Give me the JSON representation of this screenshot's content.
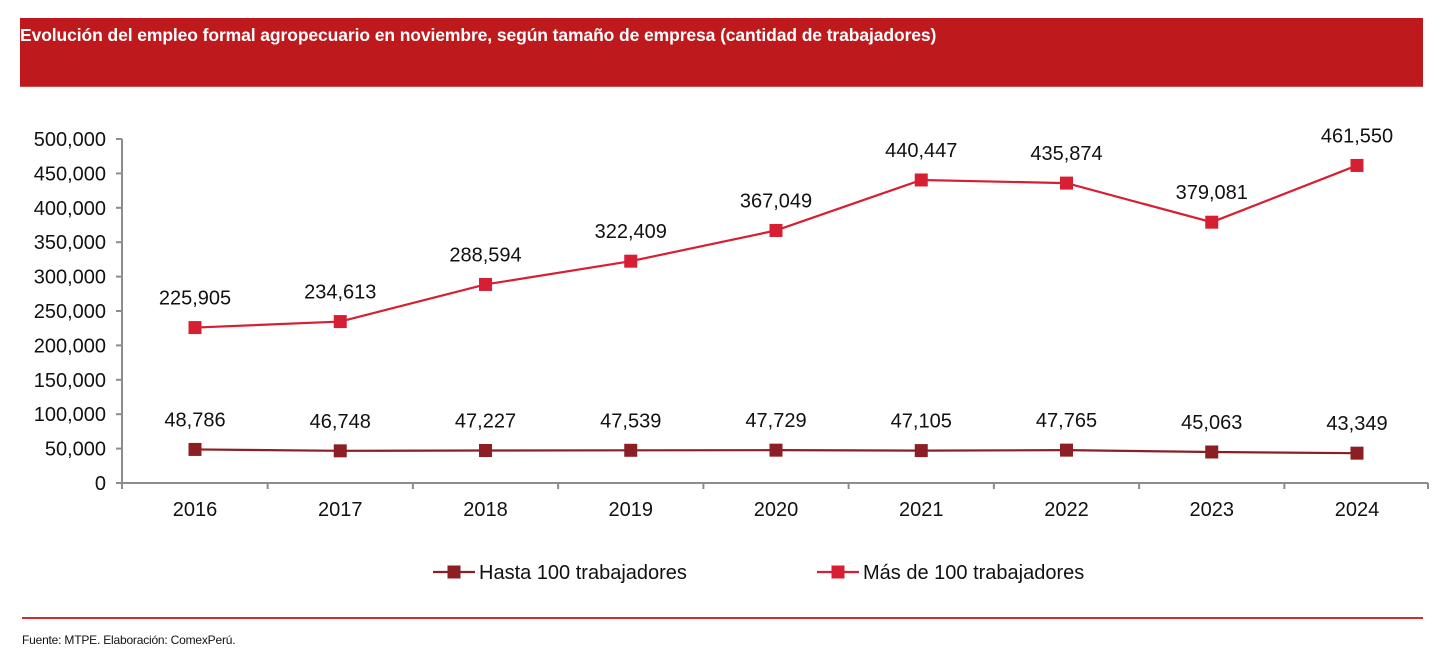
{
  "header": {
    "title": "Evolución del empleo formal agropecuario en noviembre, según tamaño de empresa (cantidad de trabajadores)"
  },
  "footer": {
    "source": "Fuente: MTPE. Elaboración: ComexPerú."
  },
  "colors": {
    "header_bg": "#be1a1d",
    "series_small": "#8b1f23",
    "series_large": "#d71f33",
    "footer_rule": "#d52a31",
    "axis": "#8c8c8c"
  },
  "chart_data": {
    "type": "line",
    "title": "Evolución del empleo formal agropecuario en noviembre, según tamaño de empresa (cantidad de trabajadores)",
    "xlabel": "",
    "ylabel": "",
    "categories": [
      "2016",
      "2017",
      "2018",
      "2019",
      "2020",
      "2021",
      "2022",
      "2023",
      "2024"
    ],
    "ylim": [
      0,
      500000
    ],
    "yticks": [
      0,
      50000,
      100000,
      150000,
      200000,
      250000,
      300000,
      350000,
      400000,
      450000,
      500000
    ],
    "ytick_labels": [
      "0",
      "50,000",
      "100,000",
      "150,000",
      "200,000",
      "250,000",
      "300,000",
      "350,000",
      "400,000",
      "450,000",
      "500,000"
    ],
    "grid": false,
    "legend_position": "bottom",
    "series": [
      {
        "name": "Hasta 100 trabajadores",
        "color": "#8b1f23",
        "marker": "square",
        "values": [
          48786,
          46748,
          47227,
          47539,
          47729,
          47105,
          47765,
          45063,
          43349
        ],
        "labels": [
          "48,786",
          "46,748",
          "47,227",
          "47,539",
          "47,729",
          "47,105",
          "47,765",
          "45,063",
          "43,349"
        ]
      },
      {
        "name": "Más de 100 trabajadores",
        "color": "#d71f33",
        "marker": "square",
        "values": [
          225905,
          234613,
          288594,
          322409,
          367049,
          440447,
          435874,
          379081,
          461550
        ],
        "labels": [
          "225,905",
          "234,613",
          "288,594",
          "322,409",
          "367,049",
          "440,447",
          "435,874",
          "379,081",
          "461,550"
        ]
      }
    ]
  }
}
